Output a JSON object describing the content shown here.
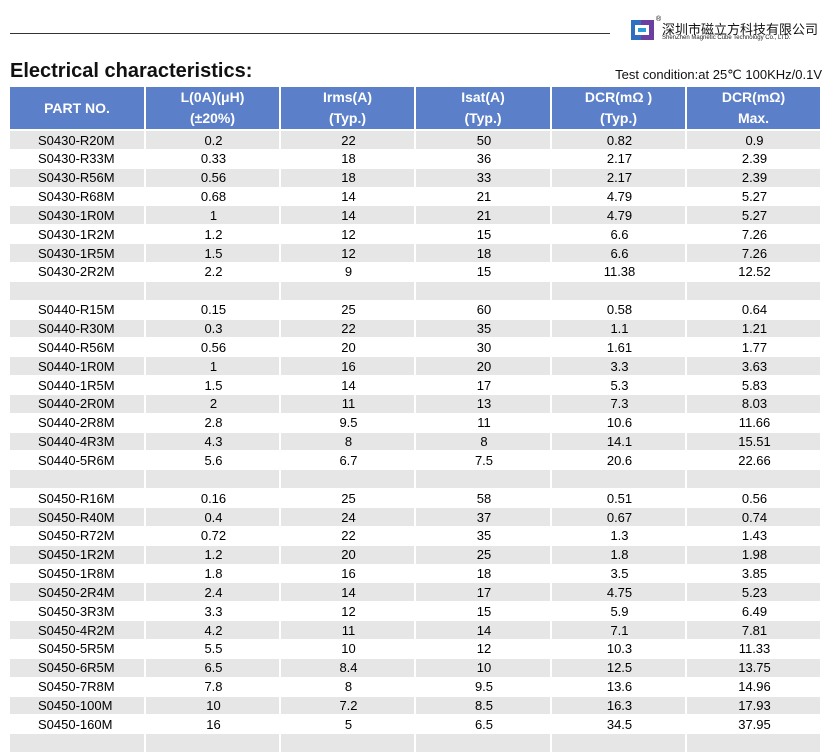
{
  "header": {
    "company": "深圳市磁立方科技有限公司",
    "registered": "®",
    "company_en": "ShenZhen Magnetic Cube Technology Co., LTD."
  },
  "title": "Electrical characteristics:",
  "test_condition": "Test condition:at 25℃ 100KHz/0.1V",
  "table": {
    "columns": [
      [
        "PART NO."
      ],
      [
        "L(0A)(μH)",
        "(±20%)"
      ],
      [
        "Irms(A)",
        "(Typ.)"
      ],
      [
        "Isat(A)",
        "(Typ.)"
      ],
      [
        "DCR(mΩ )",
        "(Typ.)"
      ],
      [
        "DCR(mΩ)",
        "Max."
      ]
    ],
    "groups": [
      {
        "rows": [
          [
            "S0430-R20M",
            "0.2",
            "22",
            "50",
            "0.82",
            "0.9"
          ],
          [
            "S0430-R33M",
            "0.33",
            "18",
            "36",
            "2.17",
            "2.39"
          ],
          [
            "S0430-R56M",
            "0.56",
            "18",
            "33",
            "2.17",
            "2.39"
          ],
          [
            "S0430-R68M",
            "0.68",
            "14",
            "21",
            "4.79",
            "5.27"
          ],
          [
            "S0430-1R0M",
            "1",
            "14",
            "21",
            "4.79",
            "5.27"
          ],
          [
            "S0430-1R2M",
            "1.2",
            "12",
            "15",
            "6.6",
            "7.26"
          ],
          [
            "S0430-1R5M",
            "1.5",
            "12",
            "18",
            "6.6",
            "7.26"
          ],
          [
            "S0430-2R2M",
            "2.2",
            "9",
            "15",
            "11.38",
            "12.52"
          ]
        ]
      },
      {
        "rows": [
          [
            "S0440-R15M",
            "0.15",
            "25",
            "60",
            "0.58",
            "0.64"
          ],
          [
            "S0440-R30M",
            "0.3",
            "22",
            "35",
            "1.1",
            "1.21"
          ],
          [
            "S0440-R56M",
            "0.56",
            "20",
            "30",
            "1.61",
            "1.77"
          ],
          [
            "S0440-1R0M",
            "1",
            "16",
            "20",
            "3.3",
            "3.63"
          ],
          [
            "S0440-1R5M",
            "1.5",
            "14",
            "17",
            "5.3",
            "5.83"
          ],
          [
            "S0440-2R0M",
            "2",
            "11",
            "13",
            "7.3",
            "8.03"
          ],
          [
            "S0440-2R8M",
            "2.8",
            "9.5",
            "11",
            "10.6",
            "11.66"
          ],
          [
            "S0440-4R3M",
            "4.3",
            "8",
            "8",
            "14.1",
            "15.51"
          ],
          [
            "S0440-5R6M",
            "5.6",
            "6.7",
            "7.5",
            "20.6",
            "22.66"
          ]
        ]
      },
      {
        "rows": [
          [
            "S0450-R16M",
            "0.16",
            "25",
            "58",
            "0.51",
            "0.56"
          ],
          [
            "S0450-R40M",
            "0.4",
            "24",
            "37",
            "0.67",
            "0.74"
          ],
          [
            "S0450-R72M",
            "0.72",
            "22",
            "35",
            "1.3",
            "1.43"
          ],
          [
            "S0450-1R2M",
            "1.2",
            "20",
            "25",
            "1.8",
            "1.98"
          ],
          [
            "S0450-1R8M",
            "1.8",
            "16",
            "18",
            "3.5",
            "3.85"
          ],
          [
            "S0450-2R4M",
            "2.4",
            "14",
            "17",
            "4.75",
            "5.23"
          ],
          [
            "S0450-3R3M",
            "3.3",
            "12",
            "15",
            "5.9",
            "6.49"
          ],
          [
            "S0450-4R2M",
            "4.2",
            "11",
            "14",
            "7.1",
            "7.81"
          ],
          [
            "S0450-5R5M",
            "5.5",
            "10",
            "12",
            "10.3",
            "11.33"
          ],
          [
            "S0450-6R5M",
            "6.5",
            "8.4",
            "10",
            "12.5",
            "13.75"
          ],
          [
            "S0450-7R8M",
            "7.8",
            "8",
            "9.5",
            "13.6",
            "14.96"
          ],
          [
            "S0450-100M",
            "10",
            "7.2",
            "8.5",
            "16.3",
            "17.93"
          ],
          [
            "S0450-160M",
            "16",
            "5",
            "6.5",
            "34.5",
            "37.95"
          ]
        ]
      }
    ]
  }
}
